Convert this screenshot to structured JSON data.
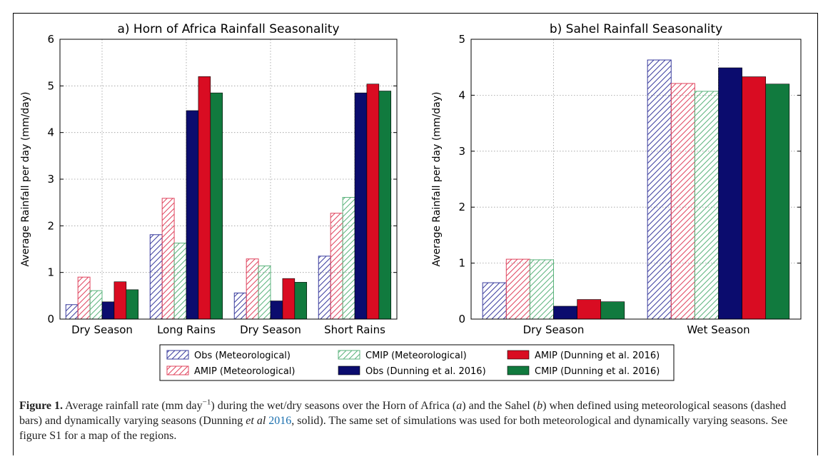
{
  "chart_data": [
    {
      "type": "bar",
      "title": "a) Horn of Africa Rainfall Seasonality",
      "xlabel": "",
      "ylabel": "Average Rainfall per day (mm/day)",
      "ylim": [
        0,
        6
      ],
      "yticks": [
        "0",
        "1",
        "2",
        "3",
        "4",
        "5",
        "6"
      ],
      "grid": true,
      "categories": [
        "Dry Season",
        "Long Rains",
        "Dry Season",
        "Short Rains"
      ],
      "series": [
        {
          "name": "Obs (Meteorological)",
          "values": [
            0.31,
            1.81,
            0.56,
            1.35
          ]
        },
        {
          "name": "AMIP (Meteorological)",
          "values": [
            0.9,
            2.59,
            1.29,
            2.27
          ]
        },
        {
          "name": "CMIP (Meteorological)",
          "values": [
            0.61,
            1.63,
            1.14,
            2.61
          ]
        },
        {
          "name": "Obs (Dunning et al. 2016)",
          "values": [
            0.37,
            4.47,
            0.39,
            4.85
          ]
        },
        {
          "name": "AMIP (Dunning et al. 2016)",
          "values": [
            0.8,
            5.2,
            0.87,
            5.04
          ]
        },
        {
          "name": "CMIP (Dunning et al. 2016)",
          "values": [
            0.63,
            4.85,
            0.79,
            4.89
          ]
        }
      ]
    },
    {
      "type": "bar",
      "title": "b) Sahel Rainfall Seasonality",
      "xlabel": "",
      "ylabel": "Average Rainfall per day (mm/day)",
      "ylim": [
        0,
        5
      ],
      "yticks": [
        "0",
        "1",
        "2",
        "3",
        "4",
        "5"
      ],
      "grid": true,
      "categories": [
        "Dry Season",
        "Wet Season"
      ],
      "series": [
        {
          "name": "Obs (Meteorological)",
          "values": [
            0.65,
            4.63
          ]
        },
        {
          "name": "AMIP (Meteorological)",
          "values": [
            1.07,
            4.21
          ]
        },
        {
          "name": "CMIP (Meteorological)",
          "values": [
            1.06,
            4.07
          ]
        },
        {
          "name": "Obs (Dunning et al. 2016)",
          "values": [
            0.23,
            4.49
          ]
        },
        {
          "name": "AMIP (Dunning et al. 2016)",
          "values": [
            0.35,
            4.33
          ]
        },
        {
          "name": "CMIP (Dunning et al. 2016)",
          "values": [
            0.31,
            4.2
          ]
        }
      ]
    }
  ],
  "series_styles": [
    {
      "color": "#3a3d9e",
      "fill": "hatch"
    },
    {
      "color": "#e0445e",
      "fill": "hatch"
    },
    {
      "color": "#5bb37c",
      "fill": "hatch"
    },
    {
      "color": "#0b0c6e",
      "fill": "solid"
    },
    {
      "color": "#d90c22",
      "fill": "solid"
    },
    {
      "color": "#117a3e",
      "fill": "solid"
    }
  ],
  "legend": {
    "placement": "bottom-center",
    "columns": 3
  },
  "caption": {
    "label": "Figure 1.",
    "text_1": " Average rainfall rate (mm day",
    "sup": "−1",
    "text_2": ") during the wet/dry seasons over the Horn of Africa (",
    "a": "a",
    "text_3": ") and the Sahel (",
    "b": "b",
    "text_4": ") when defined using meteorological seasons (dashed bars) and dynamically varying seasons (Dunning ",
    "etal": "et al",
    "year": " 2016",
    "text_5": ", solid). The same set of simulations was used for both meteorological and dynamically varying seasons. See figure S1 for a map of the regions."
  }
}
